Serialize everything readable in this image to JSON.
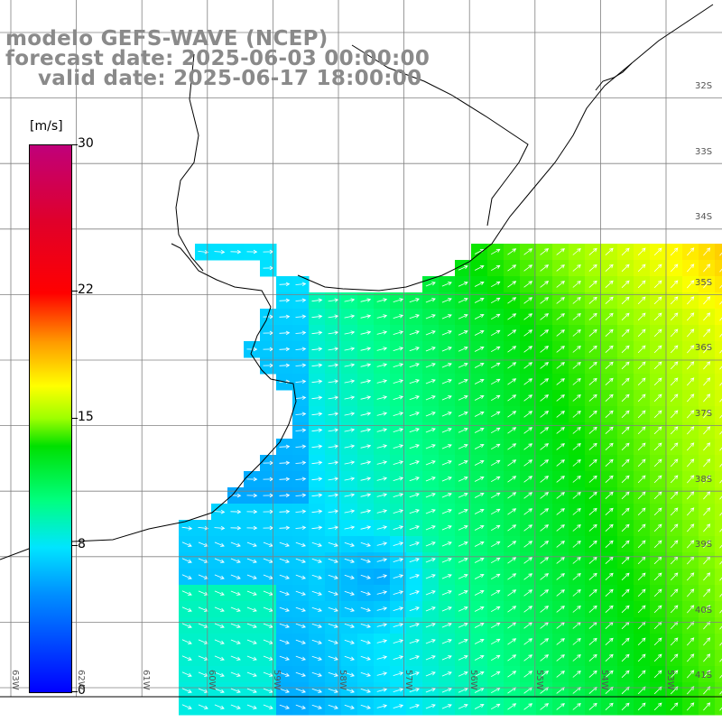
{
  "title": {
    "line1": "modelo GEFS-WAVE (NCEP)",
    "line2": "forecast date: 2025-06-03 00:00:00",
    "line3": "valid date: 2025-06-17 18:00:00"
  },
  "colorbar": {
    "unit": "[m/s]",
    "ticks": [
      "30",
      "22",
      "15",
      "8",
      "0"
    ],
    "tick_values": [
      30,
      22,
      15,
      8,
      0
    ]
  },
  "lat_labels": [
    "32S",
    "33S",
    "34S",
    "35S",
    "36S",
    "37S",
    "38S",
    "39S",
    "40S",
    "41S"
  ],
  "lon_labels": [
    "63W",
    "62W",
    "61W",
    "60W",
    "59W",
    "58W",
    "57W",
    "56W",
    "55W",
    "54W",
    "53W"
  ],
  "colors": {
    "land": "#ffffff",
    "grid": "#808080",
    "coast": "#000000",
    "arrows": "#ffffff",
    "title": "#8a8a8a"
  }
}
